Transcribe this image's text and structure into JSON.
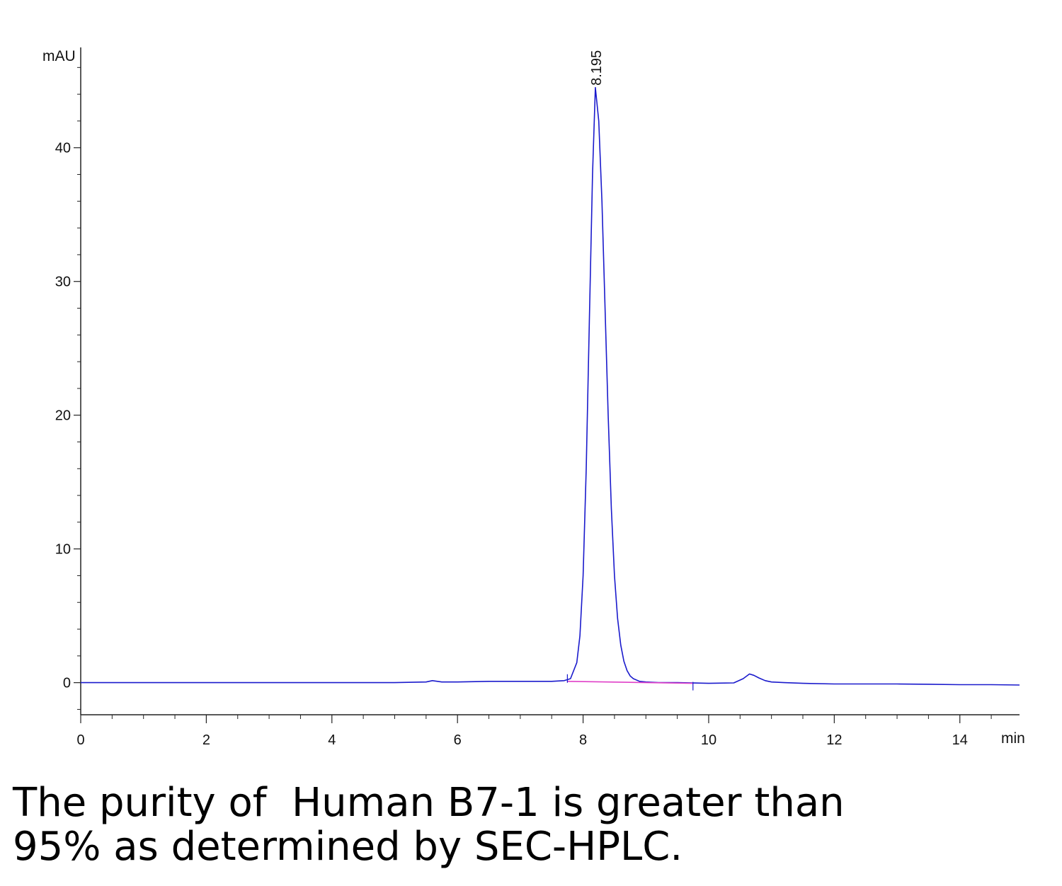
{
  "chart_data": {
    "type": "line",
    "title": "",
    "ylabel": "mAU",
    "xlabel": "min",
    "xlim": [
      0,
      14.95
    ],
    "ylim": [
      -2.4,
      47.5
    ],
    "x_ticks": [
      0,
      2,
      4,
      6,
      8,
      10,
      12,
      14
    ],
    "y_ticks": [
      0,
      10,
      20,
      30,
      40
    ],
    "grid": false,
    "peak_labels": [
      {
        "x": 8.195,
        "y": 45.6,
        "label": "8.195"
      }
    ],
    "series": [
      {
        "color": "#1a1acc",
        "x": [
          0,
          1,
          2,
          3,
          4,
          5,
          5.5,
          5.6,
          5.75,
          6,
          6.5,
          7,
          7.5,
          7.7,
          7.8,
          7.9,
          7.95,
          8.0,
          8.05,
          8.1,
          8.15,
          8.195,
          8.25,
          8.3,
          8.35,
          8.4,
          8.45,
          8.5,
          8.55,
          8.6,
          8.65,
          8.7,
          8.75,
          8.8,
          8.9,
          9.0,
          9.2,
          9.5,
          10.0,
          10.4,
          10.55,
          10.65,
          10.72,
          10.8,
          10.9,
          11.0,
          11.2,
          11.5,
          12.0,
          12.5,
          13.0,
          13.5,
          14.0,
          14.5,
          14.95
        ],
        "y": [
          0.0,
          0.0,
          0.0,
          0.0,
          0.0,
          0.0,
          0.05,
          0.15,
          0.05,
          0.05,
          0.1,
          0.1,
          0.1,
          0.15,
          0.3,
          1.5,
          3.5,
          8.0,
          16.0,
          27.0,
          38.0,
          44.5,
          42.0,
          36.0,
          28.0,
          20.0,
          13.0,
          8.0,
          4.8,
          2.8,
          1.6,
          0.9,
          0.5,
          0.3,
          0.1,
          0.05,
          0.0,
          0.0,
          -0.05,
          -0.02,
          0.3,
          0.65,
          0.55,
          0.35,
          0.15,
          0.05,
          0.0,
          -0.05,
          -0.1,
          -0.1,
          -0.1,
          -0.12,
          -0.15,
          -0.15,
          -0.18
        ]
      },
      {
        "color": "#e040c8",
        "x": [
          7.75,
          9.75
        ],
        "y": [
          0.1,
          -0.05
        ]
      }
    ]
  },
  "caption": {
    "line1": "The purity of  Human B7-1 is greater than",
    "line2": "95% as determined by SEC-HPLC."
  }
}
